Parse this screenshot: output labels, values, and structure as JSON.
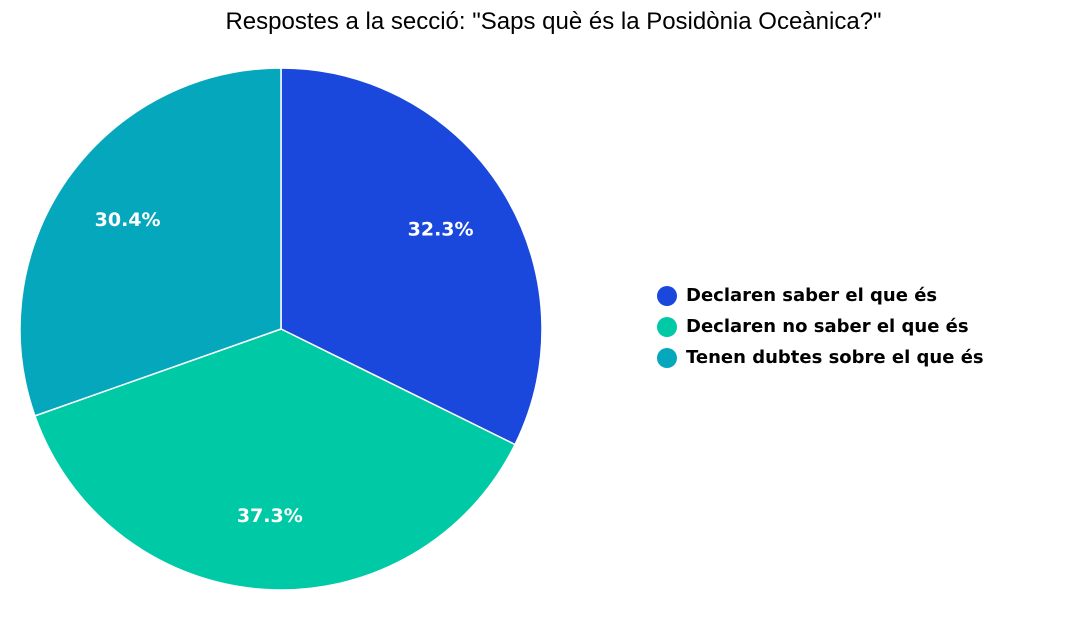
{
  "chart_data": {
    "type": "pie",
    "title": "Respostes a la secció: \"Saps què és la Posidònia Oceànica?\"",
    "series": [
      {
        "name": "Declaren saber el que és",
        "value": 32.3,
        "label": "32.3%",
        "color": "#1a48dc"
      },
      {
        "name": "Declaren no saber el que és",
        "value": 37.3,
        "label": "37.3%",
        "color": "#00c9a6"
      },
      {
        "name": "Tenen dubtes sobre el que és",
        "value": 30.4,
        "label": "30.4%",
        "color": "#04a7bc"
      }
    ],
    "legend_position": "right"
  }
}
